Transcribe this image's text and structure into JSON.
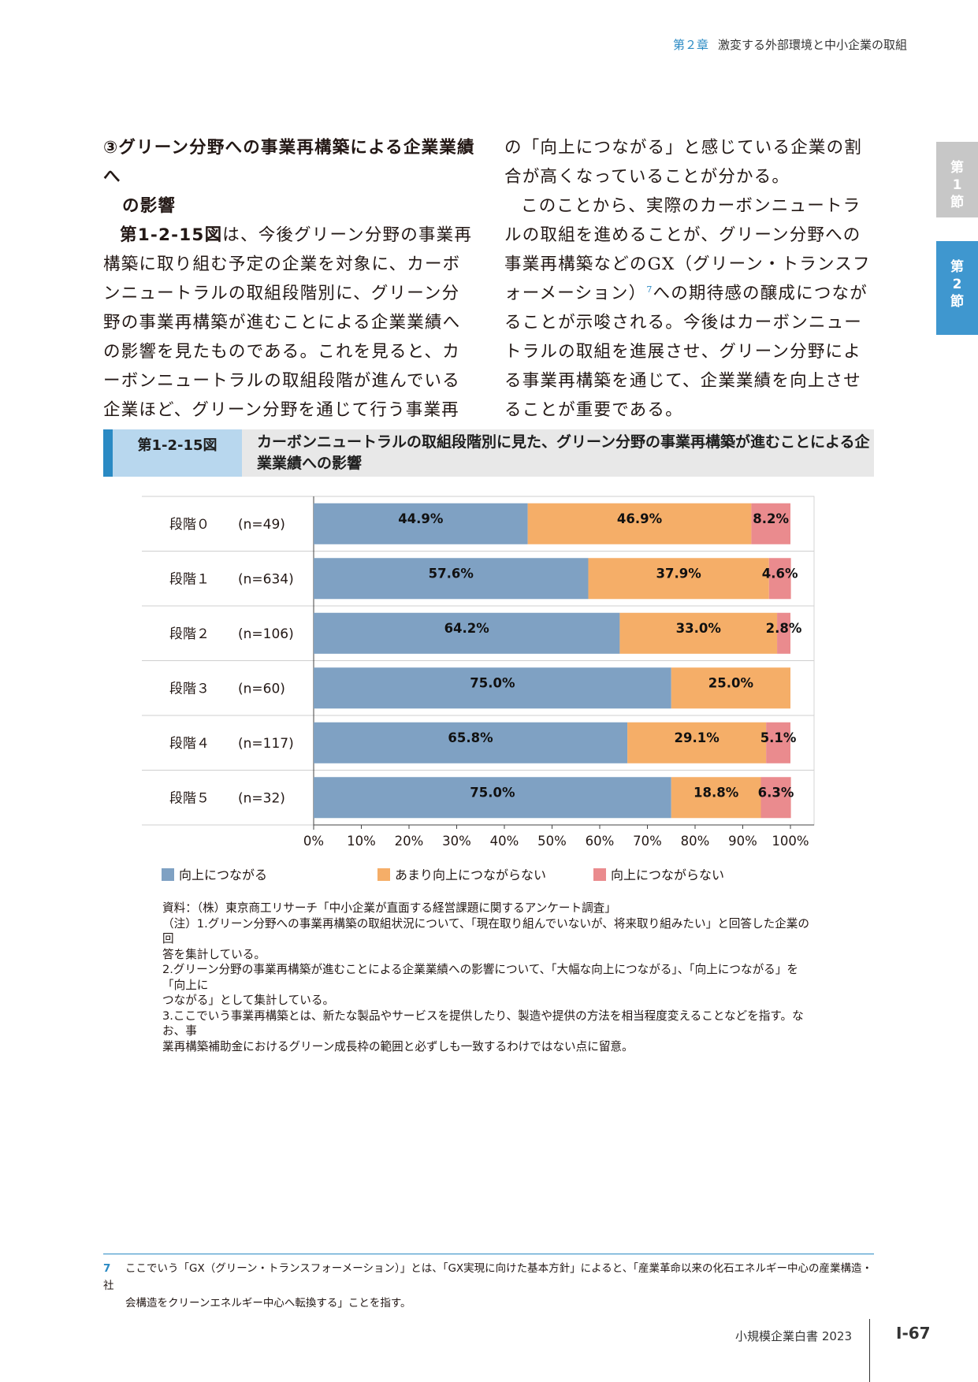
{
  "running_header": {
    "chapter": "第２章",
    "title": "激変する外部環境と中小企業の取組"
  },
  "side_tabs": [
    {
      "chars": [
        "第",
        "1",
        "節"
      ],
      "color": "#c7c7c7"
    },
    {
      "chars": [
        "第",
        "2",
        "節"
      ],
      "color": "#3f97cf"
    }
  ],
  "body": {
    "section_title_1": "③グリーン分野への事業再構築による企業業績へ",
    "section_title_2": "の影響",
    "p1_ref": "第1-2-15図",
    "p1_text": "は、今後グリーン分野の事業再構築に取り組む予定の企業を対象に、カーボンニュートラルの取組段階別に、グリーン分野の事業再構築が進むことによる企業業績への影響を見たものである。これを見ると、カーボンニュートラルの取組段階が進んでいる企業ほど、グリーン分野を通じて行う事業再構築に対して、企業業績",
    "p1_cont": "の「向上につながる」と感じている企業の割合が高くなっていることが分かる。",
    "p2_a": "このことから、実際のカーボンニュートラルの取組を進めることが、グリーン分野への事業再構築などのGX（グリーン・トランスフォーメーション）",
    "p2_sup": "7",
    "p2_b": "への期待感の醸成につながることが示唆される。今後はカーボンニュートラルの取組を進展させ、グリーン分野による事業再構築を通じて、企業業績を向上させることが重要である。"
  },
  "figure": {
    "label": "第1-2-15図",
    "title": "カーボンニュートラルの取組段階別に見た、グリーン分野の事業再構築が進むことによる企業業績への影響"
  },
  "chart_data": {
    "type": "bar",
    "orientation": "horizontal",
    "stacked": true,
    "percent_stacked": true,
    "categories": [
      "段階０",
      "段階１",
      "段階２",
      "段階３",
      "段階４",
      "段階５"
    ],
    "sample_sizes": [
      "(n=49)",
      "(n=634)",
      "(n=106)",
      "(n=60)",
      "(n=117)",
      "(n=32)"
    ],
    "series": [
      {
        "name": "向上につながる",
        "color": "#7fa1c3",
        "values": [
          44.9,
          57.6,
          64.2,
          75.0,
          65.8,
          75.0
        ],
        "labels": [
          "44.9%",
          "57.6%",
          "64.2%",
          "75.0%",
          "65.8%",
          "75.0%"
        ]
      },
      {
        "name": "あまり向上につながらない",
        "color": "#f5ae68",
        "values": [
          46.9,
          37.9,
          33.0,
          25.0,
          29.1,
          18.8
        ],
        "labels": [
          "46.9%",
          "37.9%",
          "33.0%",
          "25.0%",
          "29.1%",
          "18.8%"
        ]
      },
      {
        "name": "向上につながらない",
        "color": "#ea8b8e",
        "values": [
          8.2,
          4.6,
          2.8,
          0.0,
          5.1,
          6.3
        ],
        "labels": [
          "8.2%",
          "4.6%",
          "2.8%",
          "",
          "5.1%",
          "6.3%"
        ]
      }
    ],
    "xlim": [
      0,
      100
    ],
    "xticks": [
      "0%",
      "10%",
      "20%",
      "30%",
      "40%",
      "50%",
      "60%",
      "70%",
      "80%",
      "90%",
      "100%"
    ],
    "legend_position": "bottom",
    "grid": false
  },
  "notes": {
    "source": "資料：（株）東京商工リサーチ「中小企業が直面する経営課題に関するアンケート調査」",
    "n1a": "（注）1.グリーン分野への事業再構築の取組状況について、「現在取り組んでいないが、将来取り組みたい」と回答した企業の回",
    "n1b": "答を集計している。",
    "n2a": "2.グリーン分野の事業再構築が進むことによる企業業績への影響について、「大幅な向上につながる」、「向上につながる」を「向上に",
    "n2b": "つながる」として集計している。",
    "n3a": "3.ここでいう事業再構築とは、新たな製品やサービスを提供したり、製造や提供の方法を相当程度変えることなどを指す。なお、事",
    "n3b": "業再構築補助金におけるグリーン成長枠の範囲と必ずしも一致するわけではない点に留意。"
  },
  "footnote": {
    "num": "7",
    "line1": "ここでいう「GX（グリーン・トランスフォーメーション）」とは、「GX実現に向けた基本方針」によると、「産業革命以来の化石エネルギー中心の産業構造・社",
    "line2": "会構造をクリーンエネルギー中心へ転換する」ことを指す。"
  },
  "footer": {
    "publication": "小規模企業白書 2023",
    "page": "Ⅰ-67"
  }
}
